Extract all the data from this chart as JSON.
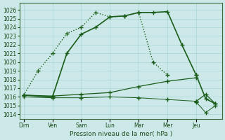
{
  "background_color": "#cce8e8",
  "grid_color": "#aad4d4",
  "line_color": "#1a5c1a",
  "xlabel": "Pression niveau de la mer( hPa )",
  "ylim": [
    1013.5,
    1026.8
  ],
  "yticks": [
    1014,
    1015,
    1016,
    1017,
    1018,
    1019,
    1020,
    1021,
    1022,
    1023,
    1024,
    1025,
    1026
  ],
  "x_labels": [
    "Dim",
    "Ven",
    "Sam",
    "Lun",
    "Mar",
    "Mer",
    "Jeu"
  ],
  "x_tick_pos": [
    0,
    1,
    2,
    3,
    4,
    5,
    6
  ],
  "xlim": [
    -0.15,
    6.9
  ],
  "line1_x": [
    0,
    1,
    1.5,
    2,
    2.5,
    3,
    3.5,
    4,
    4.5,
    5,
    5.5,
    6
  ],
  "line1_y": [
    1016.2,
    1016.0,
    1021.0,
    1023.2,
    1024.0,
    1025.2,
    1025.3,
    1025.7,
    1025.7,
    1025.8,
    1022.0,
    1018.5
  ],
  "line1_style": "-",
  "line1_lw": 1.2,
  "line2_x": [
    0,
    0.5,
    1,
    1.5,
    2,
    2.5,
    3,
    3.5,
    4,
    4.5,
    5
  ],
  "line2_y": [
    1016.2,
    1019.0,
    1021.0,
    1023.3,
    1024.0,
    1025.7,
    1025.2,
    1025.3,
    1025.7,
    1020.0,
    1018.5
  ],
  "line2_style": ":",
  "line2_lw": 1.0,
  "line3_x": [
    0,
    1,
    2,
    3,
    4,
    5,
    6
  ],
  "line3_y": [
    1016.2,
    1016.1,
    1016.3,
    1016.5,
    1017.2,
    1017.8,
    1018.2
  ],
  "line3_style": "-",
  "line3_lw": 0.9,
  "line4_x": [
    0,
    1,
    2,
    3,
    4,
    5,
    6
  ],
  "line4_y": [
    1016.0,
    1015.9,
    1015.9,
    1016.0,
    1015.9,
    1015.7,
    1015.5
  ],
  "line4_style": "-",
  "line4_lw": 0.7,
  "line5_x": [
    6,
    6.33,
    6.67
  ],
  "line5_y": [
    1015.5,
    1016.3,
    1015.2
  ],
  "line5_style": "-",
  "line5_lw": 0.9,
  "line6_x": [
    6,
    6.33,
    6.67
  ],
  "line6_y": [
    1018.5,
    1015.8,
    1015.2
  ],
  "line6_style": "-",
  "line6_lw": 1.2,
  "line7_x": [
    6,
    6.33,
    6.67
  ],
  "line7_y": [
    1015.4,
    1014.2,
    1015.0
  ],
  "line7_style": "-",
  "line7_lw": 0.7
}
